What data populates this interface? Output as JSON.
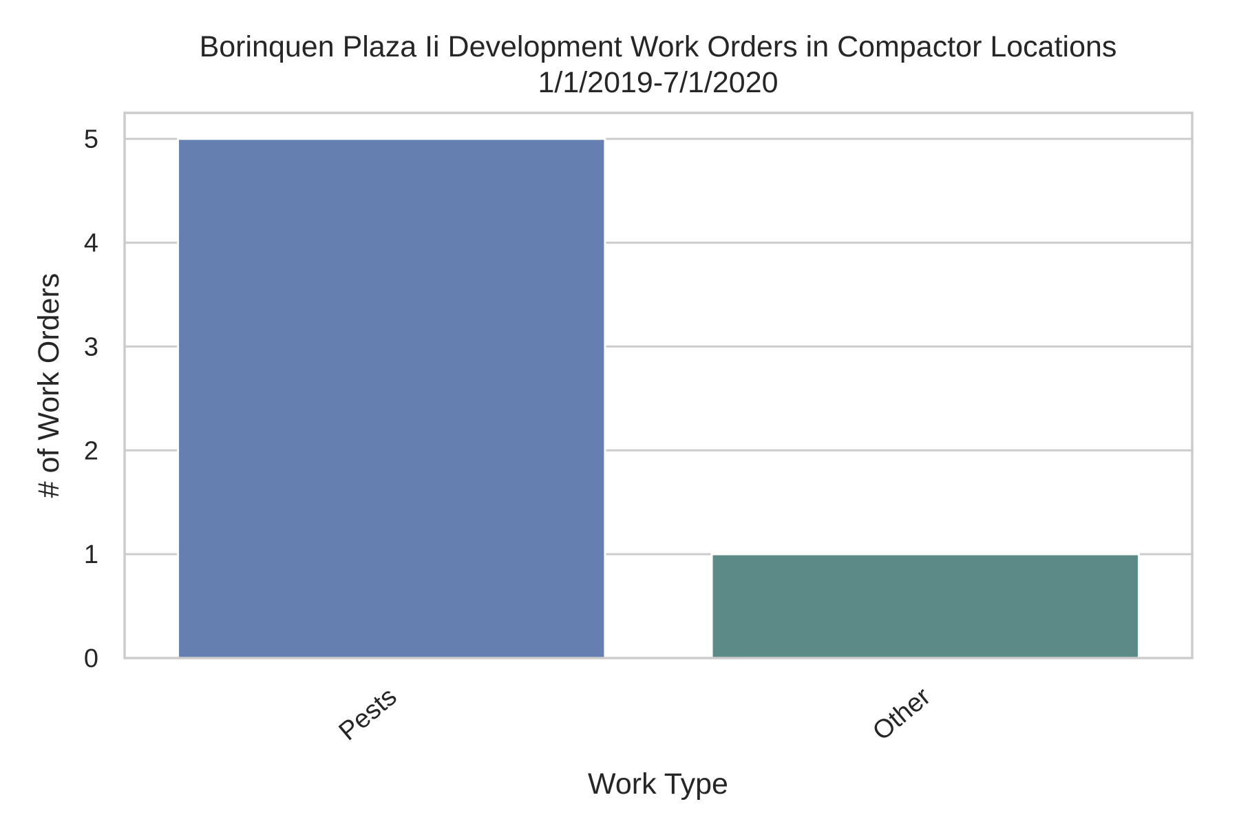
{
  "chart_data": {
    "type": "bar",
    "title": "Borinquen Plaza Ii Development Work Orders in Compactor Locations",
    "subtitle": "1/1/2019-7/1/2020",
    "xlabel": "Work Type",
    "ylabel": "# of Work Orders",
    "categories": [
      "Pests",
      "Other"
    ],
    "values": [
      5,
      1
    ],
    "colors": [
      "#6580b0",
      "#5c8a87"
    ],
    "ylim": [
      0,
      5.25
    ],
    "yticks": [
      "0",
      "1",
      "2",
      "3",
      "4",
      "5"
    ],
    "grid": true,
    "legend": "none",
    "gridColor": "#cccccc",
    "spineColor": "#cccccc"
  }
}
